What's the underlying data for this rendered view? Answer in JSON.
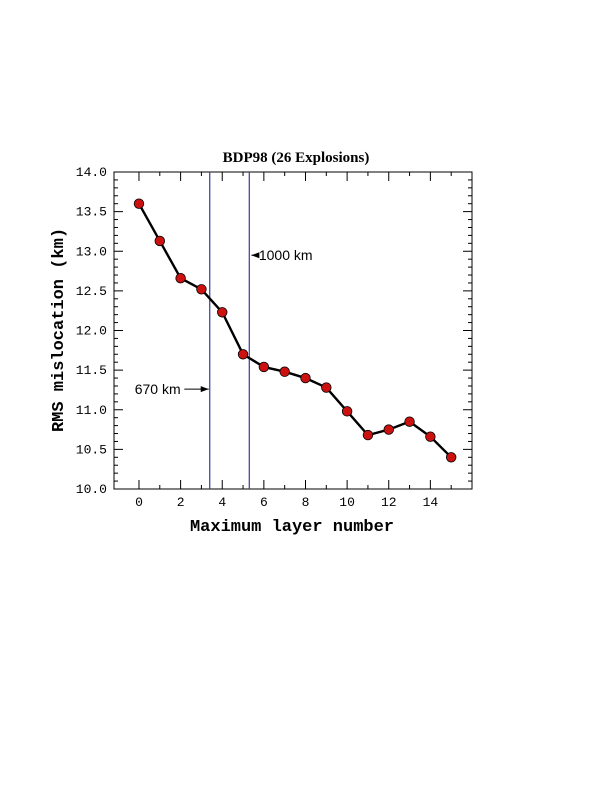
{
  "chart_data": {
    "type": "line",
    "title": "BDP98 (26 Explosions)",
    "xlabel": "Maximum layer number",
    "ylabel": "RMS mislocation (km)",
    "xlim": [
      -1.2,
      16.0
    ],
    "ylim": [
      10.0,
      14.0
    ],
    "x_ticks": [
      0,
      2,
      4,
      6,
      8,
      10,
      12,
      14
    ],
    "y_ticks": [
      10.0,
      10.5,
      11.0,
      11.5,
      12.0,
      12.5,
      13.0,
      13.5,
      14.0
    ],
    "x_tick_labels": [
      "0",
      "2",
      "4",
      "6",
      "8",
      "10",
      "12",
      "14"
    ],
    "y_tick_labels": [
      "10.0",
      "10.5",
      "11.0",
      "11.5",
      "12.0",
      "12.5",
      "13.0",
      "13.5",
      "14.0"
    ],
    "series": [
      {
        "x": [
          0,
          1,
          2,
          3,
          4,
          5,
          6,
          7,
          8,
          9,
          10,
          11,
          12,
          13,
          14,
          15
        ],
        "values": [
          13.6,
          13.13,
          12.66,
          12.52,
          12.23,
          11.7,
          11.54,
          11.48,
          11.4,
          11.28,
          10.98,
          10.68,
          10.75,
          10.85,
          10.66,
          10.4
        ],
        "line_color": "#000000",
        "marker_color": "#cc1111"
      }
    ],
    "vertical_lines": [
      {
        "x": 3.4,
        "color": "#3a3a9a"
      },
      {
        "x": 5.3,
        "color": "#3a3a9a"
      }
    ],
    "annotations": [
      {
        "text": "670 km",
        "x": 0.9,
        "y": 11.26,
        "arrow_to_x": 3.35,
        "arrow_to_y": 11.26
      },
      {
        "text": "1000 km",
        "x": 7.05,
        "y": 12.95,
        "arrow_to_x": 5.4,
        "arrow_to_y": 12.95
      }
    ],
    "grid": false
  }
}
